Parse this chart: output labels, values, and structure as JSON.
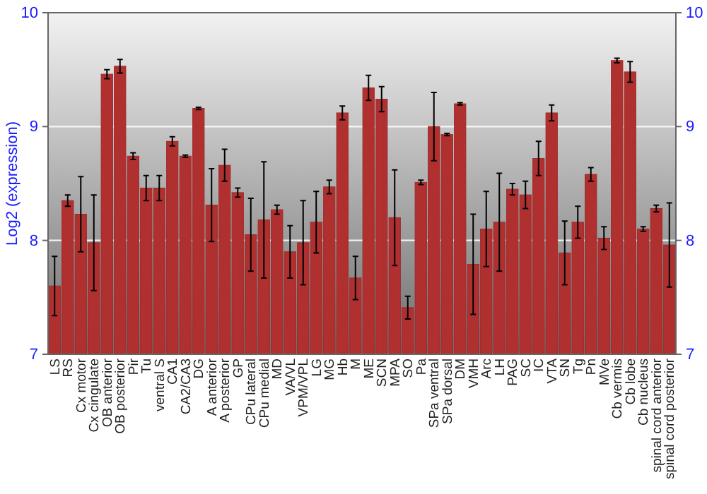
{
  "chart_data": {
    "type": "bar",
    "ylabel": "Log2 (expression)",
    "categories": [
      "LS",
      "RS",
      "Cx motor",
      "Cx cingulate",
      "OB anterior",
      "OB posterior",
      "Pir",
      "Tu",
      "ventral S",
      "CA1",
      "CA2/CA3",
      "DG",
      "A anterior",
      "A posterior",
      "GP",
      "CPu lateral",
      "CPu medial",
      "MD",
      "VA/VL",
      "VPM/VPL",
      "LG",
      "MG",
      "Hb",
      "M",
      "ME",
      "SCN",
      "MPA",
      "SO",
      "Pa",
      "SPa ventral",
      "SPa dorsal",
      "DM",
      "VMH",
      "Arc",
      "LH",
      "PAG",
      "SC",
      "IC",
      "VTA",
      "SN",
      "Tg",
      "Pn",
      "MVe",
      "Cb vermis",
      "Cb lobe",
      "Cb nucleus",
      "spinal cord anterior",
      "spinal cord posterior"
    ],
    "values": [
      7.6,
      8.35,
      8.23,
      7.98,
      9.46,
      9.53,
      8.74,
      8.46,
      8.46,
      8.87,
      8.74,
      9.16,
      8.31,
      8.66,
      8.42,
      8.05,
      8.18,
      8.27,
      7.9,
      7.98,
      8.16,
      8.47,
      9.12,
      7.67,
      9.34,
      9.24,
      8.2,
      7.41,
      8.51,
      9.0,
      8.93,
      9.2,
      7.79,
      8.1,
      8.16,
      8.45,
      8.4,
      8.72,
      9.12,
      7.89,
      8.16,
      8.58,
      8.02,
      9.58,
      9.48,
      8.1,
      8.28,
      7.96
    ],
    "errors": [
      0.26,
      0.05,
      0.33,
      0.42,
      0.04,
      0.06,
      0.03,
      0.11,
      0.11,
      0.04,
      0.01,
      0.01,
      0.32,
      0.14,
      0.04,
      0.32,
      0.51,
      0.04,
      0.23,
      0.37,
      0.27,
      0.06,
      0.06,
      0.19,
      0.11,
      0.11,
      0.42,
      0.1,
      0.02,
      0.3,
      0.01,
      0.01,
      0.44,
      0.33,
      0.43,
      0.05,
      0.12,
      0.15,
      0.07,
      0.28,
      0.14,
      0.06,
      0.1,
      0.02,
      0.09,
      0.02,
      0.03,
      0.37
    ],
    "color": "#b03030",
    "ylim": [
      7,
      10
    ],
    "yticks": [
      7,
      8,
      9,
      10
    ],
    "y2lim": [
      7,
      10
    ],
    "y2ticks": [
      7,
      8,
      9,
      10
    ],
    "grid": "y"
  }
}
